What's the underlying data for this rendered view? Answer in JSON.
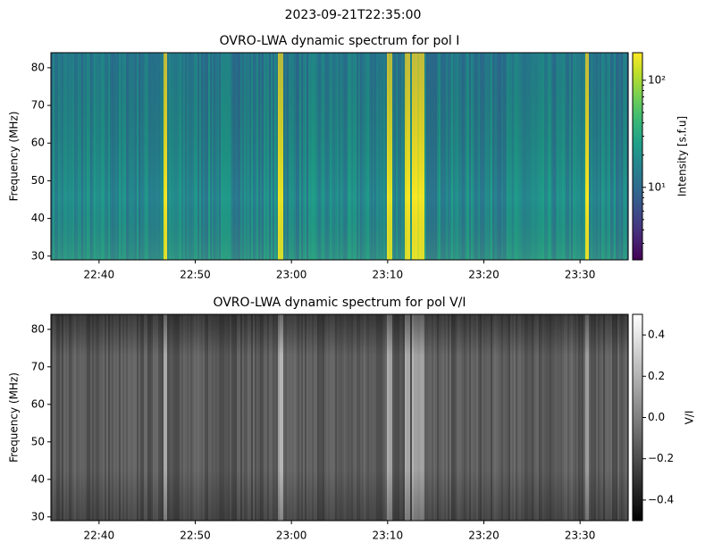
{
  "title": "2023-09-21T22:35:00",
  "chart_data": [
    {
      "type": "heatmap",
      "title": "OVRO-LWA dynamic spectrum for pol I",
      "ylabel": "Frequency (MHz)",
      "ylim": [
        29,
        84
      ],
      "yticks": [
        30,
        40,
        50,
        60,
        70,
        80
      ],
      "xlim": [
        "22:35",
        "23:35"
      ],
      "xticks": [
        "22:40",
        "22:50",
        "23:00",
        "23:10",
        "23:20",
        "23:30"
      ],
      "colormap": "viridis",
      "color_log": true,
      "clim": [
        2.1,
        181
      ],
      "cticks": [
        {
          "value": 10,
          "label": "10¹"
        },
        {
          "value": 100,
          "label": "10²"
        }
      ],
      "clabel": "Intensity [s.f.u]"
    },
    {
      "type": "heatmap",
      "title": "OVRO-LWA dynamic spectrum for pol V/I",
      "ylabel": "Frequency (MHz)",
      "ylim": [
        29,
        84
      ],
      "yticks": [
        30,
        40,
        50,
        60,
        70,
        80
      ],
      "xlim": [
        "22:35",
        "23:35"
      ],
      "xticks": [
        "22:40",
        "22:50",
        "23:00",
        "23:10",
        "23:20",
        "23:30"
      ],
      "colormap": "gray",
      "color_log": false,
      "clim": [
        -0.5,
        0.5
      ],
      "cticks": [
        {
          "value": -0.4,
          "label": "−0.4"
        },
        {
          "value": -0.2,
          "label": "−0.2"
        },
        {
          "value": 0,
          "label": "0.0"
        },
        0.2,
        0.4
      ],
      "clabel": "V/I"
    }
  ]
}
